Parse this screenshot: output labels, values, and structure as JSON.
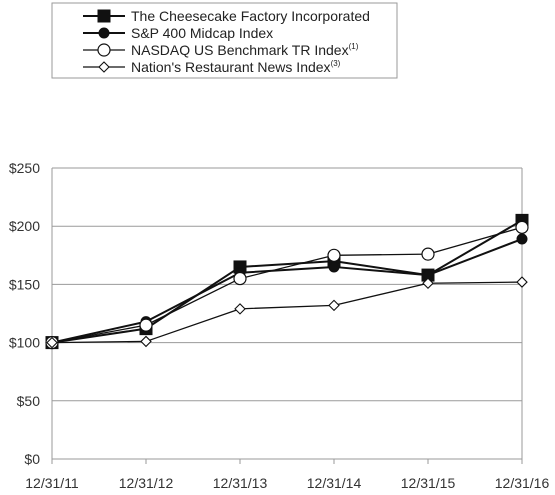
{
  "chart_data": {
    "type": "line",
    "categories": [
      "12/31/11",
      "12/31/12",
      "12/31/13",
      "12/31/14",
      "12/31/15",
      "12/31/16"
    ],
    "y_ticks": [
      "$0",
      "$50",
      "$100",
      "$150",
      "$200",
      "$250"
    ],
    "ylim": [
      0,
      250
    ],
    "grid": "horizontal",
    "legend_placement": "top",
    "series": [
      {
        "name": "The Cheesecake Factory Incorporated",
        "superscript": "",
        "marker": "filled-square",
        "values": [
          100,
          112,
          165,
          170,
          158,
          205
        ]
      },
      {
        "name": "S&P 400 Midcap Index",
        "superscript": "",
        "marker": "filled-circle",
        "values": [
          100,
          118,
          160,
          165,
          158,
          189
        ]
      },
      {
        "name": "NASDAQ US Benchmark TR Index",
        "superscript": "(1)",
        "marker": "open-circle",
        "values": [
          100,
          115,
          155,
          175,
          176,
          199
        ]
      },
      {
        "name": "Nation's Restaurant News Index",
        "superscript": "(3)",
        "marker": "open-diamond",
        "values": [
          100,
          101,
          129,
          132,
          151,
          152
        ]
      }
    ],
    "colors": {
      "line": "#111111",
      "grid": "#9a9a9a",
      "marker_fill_open": "#ffffff"
    }
  }
}
